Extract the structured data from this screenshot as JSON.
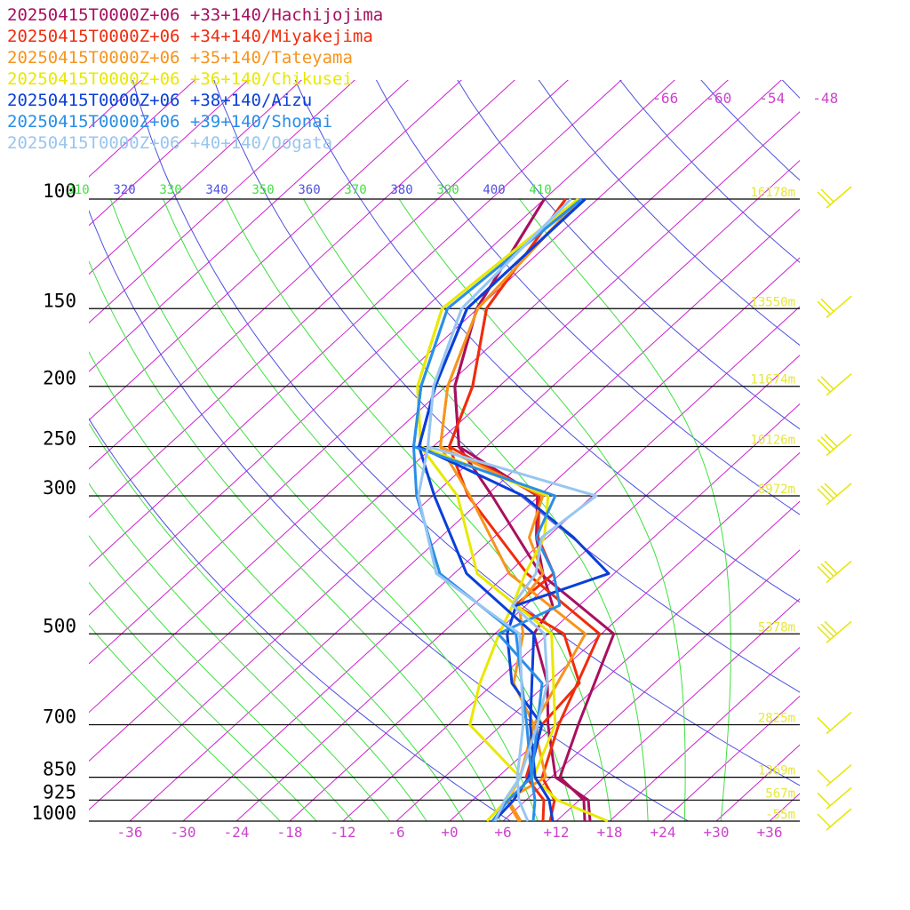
{
  "legend": [
    {
      "label": "20250415T0000Z+06 +33+140/Hachijojima",
      "color": "#a8105e"
    },
    {
      "label": "20250415T0000Z+06 +34+140/Miyakejima",
      "color": "#f02c0c"
    },
    {
      "label": "20250415T0000Z+06 +35+140/Tateyama",
      "color": "#f7941d"
    },
    {
      "label": "20250415T0000Z+06 +36+140/Chikusei",
      "color": "#e8e800"
    },
    {
      "label": "20250415T0000Z+06 +38+140/Aizu",
      "color": "#0a3fd8"
    },
    {
      "label": "20250415T0000Z+06 +39+140/Shonai",
      "color": "#2a8ee8"
    },
    {
      "label": "20250415T0000Z+06 +40+140/Oogata",
      "color": "#98c6f0"
    }
  ],
  "colors": {
    "isotherm": "#cc22cc",
    "dry_adiabat": "#5050dd",
    "moist_adiabat": "#40e040",
    "isobar": "#000000",
    "height_label": "#e6e63a",
    "wind_barb": "#e6e600"
  },
  "chart_data": {
    "type": "line",
    "title": "",
    "xlabel": "",
    "ylabel": "",
    "y_scale": "log-pressure",
    "pressure_levels": [
      100,
      150,
      200,
      250,
      300,
      500,
      700,
      850,
      925,
      1000
    ],
    "pressure_labels": [
      "100",
      "150",
      "200",
      "250",
      "300",
      "500",
      "700",
      "850",
      "925",
      "1000"
    ],
    "height_labels": [
      "16178m",
      "13550m",
      "11674m",
      "10126m",
      "8972m",
      "5378m",
      "2825m",
      "1369m",
      "567m",
      "-55m"
    ],
    "temperature_ticks": [
      "-36",
      "-30",
      "-24",
      "-18",
      "-12",
      "-6",
      "+0",
      "+6",
      "+12",
      "+18",
      "+24",
      "+30",
      "+36"
    ],
    "upper_temperature_labels": [
      "-66",
      "-60",
      "-54",
      "-48"
    ],
    "theta_labels": [
      "310",
      "320",
      "330",
      "340",
      "350",
      "360",
      "370",
      "380",
      "390",
      "400",
      "410"
    ],
    "series": [
      {
        "name": "20250415T0000Z+06 +33+140/Hachijojima",
        "temperature": [
          [
            1000,
            15.2
          ],
          [
            925,
            12.5
          ],
          [
            850,
            7.0
          ],
          [
            700,
            2.6
          ],
          [
            500,
            -4.6
          ],
          [
            400,
            -20.3
          ],
          [
            300,
            -35.3
          ],
          [
            250,
            -45.1
          ],
          [
            200,
            -53.0
          ],
          [
            150,
            -60.1
          ],
          [
            100,
            -66.0
          ]
        ],
        "dewpoint": [
          [
            1000,
            15.8
          ],
          [
            925,
            13.0
          ],
          [
            850,
            6.5
          ],
          [
            700,
            -0.8
          ],
          [
            600,
            -6.0
          ],
          [
            500,
            -13.6
          ],
          [
            450,
            -15.0
          ],
          [
            400,
            -20.0
          ],
          [
            350,
            -25.2
          ],
          [
            300,
            -30.2
          ],
          [
            250,
            -45.1
          ],
          [
            200,
            -53.0
          ],
          [
            150,
            -60.1
          ],
          [
            100,
            -66.0
          ]
        ]
      },
      {
        "name": "20250415T0000Z+06 +34+140/Miyakejima",
        "temperature": [
          [
            1000,
            11.3
          ],
          [
            925,
            9.2
          ],
          [
            850,
            5.0
          ],
          [
            700,
            0.4
          ],
          [
            500,
            -6.2
          ],
          [
            400,
            -21.8
          ],
          [
            300,
            -38.0
          ],
          [
            250,
            -46.2
          ],
          [
            200,
            -51.0
          ],
          [
            150,
            -59.0
          ],
          [
            100,
            -63.6
          ]
        ],
        "dewpoint": [
          [
            1000,
            10.5
          ],
          [
            925,
            8.0
          ],
          [
            850,
            3.2
          ],
          [
            700,
            -1.5
          ],
          [
            600,
            -2.4
          ],
          [
            500,
            -10.2
          ],
          [
            450,
            -19.2
          ],
          [
            400,
            -18.8
          ],
          [
            350,
            -25.0
          ],
          [
            300,
            -30.0
          ],
          [
            250,
            -46.2
          ],
          [
            200,
            -51.0
          ],
          [
            150,
            -59.0
          ],
          [
            100,
            -63.6
          ]
        ]
      },
      {
        "name": "20250415T0000Z+06 +35+140/Tateyama",
        "temperature": [
          [
            1000,
            7.8
          ],
          [
            925,
            3.8
          ],
          [
            850,
            5.4
          ],
          [
            700,
            -2.4
          ],
          [
            500,
            -7.8
          ],
          [
            400,
            -23.8
          ],
          [
            300,
            -37.8
          ],
          [
            250,
            -47.2
          ],
          [
            200,
            -53.8
          ],
          [
            150,
            -60.0
          ],
          [
            100,
            -62.0
          ]
        ],
        "dewpoint": [
          [
            1000,
            8.0
          ],
          [
            925,
            4.0
          ],
          [
            850,
            2.5
          ],
          [
            700,
            -2.4
          ],
          [
            600,
            -9.8
          ],
          [
            500,
            -14.8
          ],
          [
            450,
            -18.8
          ],
          [
            400,
            -20.0
          ],
          [
            350,
            -26.0
          ],
          [
            300,
            -29.6
          ],
          [
            250,
            -47.2
          ],
          [
            200,
            -53.8
          ],
          [
            150,
            -60.0
          ],
          [
            100,
            -62.0
          ]
        ]
      },
      {
        "name": "20250415T0000Z+06 +36+140/Chikusei",
        "temperature": [
          [
            1000,
            17.8
          ],
          [
            925,
            9.5
          ],
          [
            850,
            4.0
          ],
          [
            700,
            0.0
          ],
          [
            500,
            -11.6
          ],
          [
            400,
            -27.4
          ],
          [
            300,
            -39.2
          ],
          [
            250,
            -49.4
          ],
          [
            200,
            -57.2
          ],
          [
            150,
            -64.0
          ],
          [
            100,
            -62.2
          ]
        ],
        "dewpoint": [
          [
            1000,
            4.2
          ],
          [
            925,
            3.8
          ],
          [
            850,
            2.5
          ],
          [
            700,
            -9.6
          ],
          [
            600,
            -13.6
          ],
          [
            500,
            -17.5
          ],
          [
            450,
            -19.5
          ],
          [
            400,
            -22.0
          ],
          [
            350,
            -24.3
          ],
          [
            300,
            -29.0
          ],
          [
            250,
            -49.4
          ],
          [
            200,
            -57.2
          ],
          [
            150,
            -64.0
          ],
          [
            100,
            -62.2
          ]
        ]
      },
      {
        "name": "20250415T0000Z+06 +38+140/Aizu",
        "temperature": [
          [
            1000,
            11.6
          ],
          [
            925,
            8.6
          ],
          [
            850,
            4.2
          ],
          [
            700,
            -2.8
          ],
          [
            500,
            -13.6
          ],
          [
            400,
            -28.6
          ],
          [
            300,
            -41.8
          ],
          [
            250,
            -49.6
          ],
          [
            200,
            -55.2
          ],
          [
            150,
            -61.2
          ],
          [
            100,
            -61.4
          ]
        ],
        "dewpoint": [
          [
            1000,
            5.0
          ],
          [
            925,
            4.6
          ],
          [
            850,
            3.5
          ],
          [
            700,
            -1.5
          ],
          [
            600,
            -10.0
          ],
          [
            500,
            -16.6
          ],
          [
            450,
            -19.1
          ],
          [
            400,
            -12.6
          ],
          [
            350,
            -21.0
          ],
          [
            300,
            -31.8
          ],
          [
            250,
            -49.6
          ],
          [
            200,
            -55.2
          ],
          [
            150,
            -61.2
          ],
          [
            100,
            -61.4
          ]
        ]
      },
      {
        "name": "20250415T0000Z+06 +39+140/Shonai",
        "temperature": [
          [
            1000,
            9.4
          ],
          [
            925,
            7.0
          ],
          [
            850,
            3.8
          ],
          [
            700,
            -3.2
          ],
          [
            500,
            -15.6
          ],
          [
            400,
            -31.6
          ],
          [
            300,
            -43.8
          ],
          [
            250,
            -50.2
          ],
          [
            200,
            -56.8
          ],
          [
            150,
            -63.4
          ],
          [
            100,
            -61.8
          ]
        ],
        "dewpoint": [
          [
            1000,
            4.8
          ],
          [
            925,
            4.0
          ],
          [
            850,
            3.8
          ],
          [
            700,
            -2.0
          ],
          [
            600,
            -6.6
          ],
          [
            500,
            -17.6
          ],
          [
            450,
            -14.2
          ],
          [
            400,
            -18.8
          ],
          [
            350,
            -25.2
          ],
          [
            300,
            -28.2
          ],
          [
            250,
            -50.2
          ],
          [
            200,
            -56.8
          ],
          [
            150,
            -63.4
          ],
          [
            100,
            -61.8
          ]
        ]
      },
      {
        "name": "20250415T0000Z+06 +40+140/Oogata",
        "temperature": [
          [
            1000,
            8.8
          ],
          [
            925,
            5.2
          ],
          [
            850,
            2.2
          ],
          [
            700,
            -3.6
          ],
          [
            500,
            -15.2
          ],
          [
            400,
            -32.0
          ],
          [
            300,
            -43.6
          ],
          [
            250,
            -48.6
          ],
          [
            200,
            -55.4
          ],
          [
            150,
            -61.8
          ],
          [
            100,
            -63.0
          ]
        ],
        "dewpoint": [
          [
            1000,
            5.1
          ],
          [
            925,
            3.6
          ],
          [
            850,
            2.5
          ],
          [
            700,
            -2.0
          ],
          [
            600,
            -6.0
          ],
          [
            500,
            -12.4
          ],
          [
            450,
            -19.5
          ],
          [
            400,
            -20.8
          ],
          [
            350,
            -24.6
          ],
          [
            300,
            -23.6
          ],
          [
            250,
            -48.6
          ],
          [
            200,
            -55.4
          ],
          [
            150,
            -61.8
          ],
          [
            100,
            -63.0
          ]
        ]
      }
    ],
    "wind_barb_levels": [
      1000,
      925,
      850,
      700,
      500,
      400,
      300,
      250,
      200,
      150,
      100
    ],
    "grid": true,
    "legend_position": "top-left"
  }
}
